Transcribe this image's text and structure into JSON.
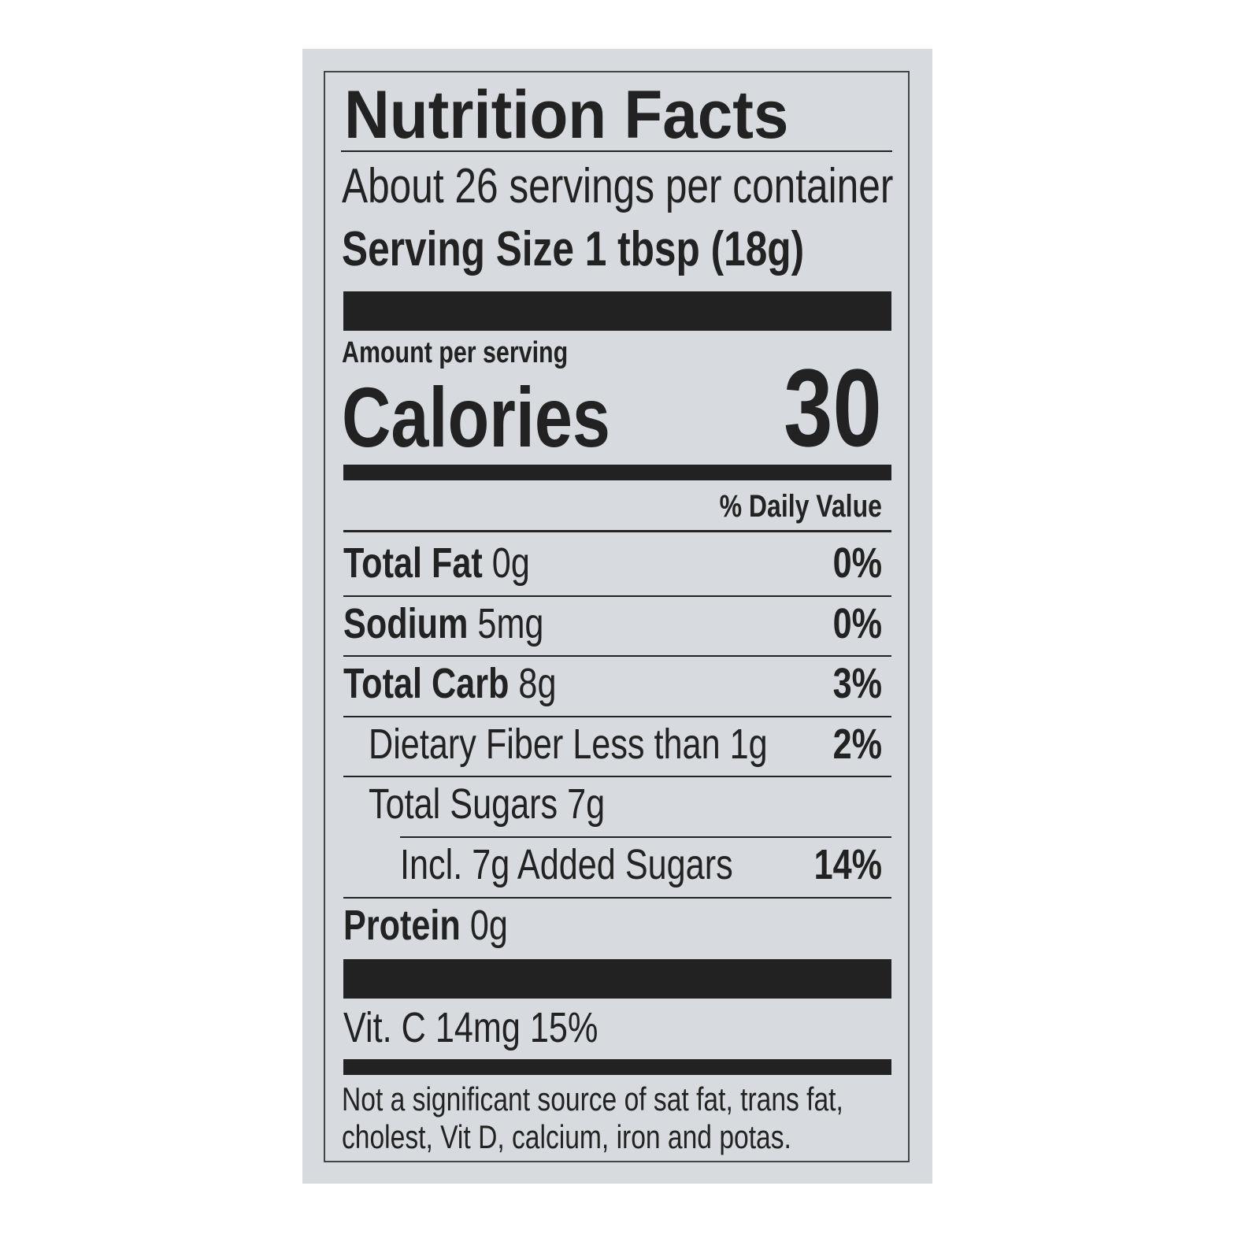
{
  "title": "Nutrition Facts",
  "servings": "About 26 servings per container",
  "serving_size": {
    "label": "Serving Size",
    "value": "1 tbsp (18g)"
  },
  "amount_per_serving": "Amount per serving",
  "calories": {
    "label": "Calories",
    "value": "30"
  },
  "daily_value_header": "% Daily Value",
  "nutrients": [
    {
      "name": "Total Fat",
      "amount": "0g",
      "dv": "0%"
    },
    {
      "name": "Sodium",
      "amount": "5mg",
      "dv": "0%"
    },
    {
      "name": "Total Carb",
      "amount": "8g",
      "dv": "3%"
    },
    {
      "name": "Dietary Fiber Less than 1g",
      "dv": "2%"
    },
    {
      "name": "Total Sugars 7g"
    },
    {
      "name": "Incl. 7g Added Sugars",
      "dv": "14%"
    },
    {
      "name": "Protein",
      "amount": "0g"
    }
  ],
  "vitamins": "Vit. C 14mg 15%",
  "footnote": [
    "Not a significant source of sat fat, trans fat,",
    "cholest, Vit D, calcium, iron and potas."
  ]
}
